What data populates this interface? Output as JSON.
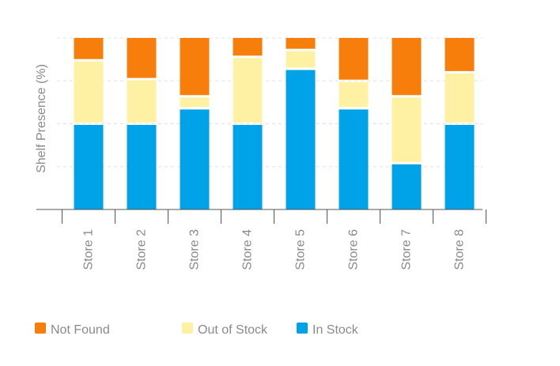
{
  "chart_data": {
    "type": "bar",
    "stacked": true,
    "title": "",
    "xlabel": "",
    "ylabel": "Shelf Presence (%)",
    "ylim": [
      0,
      100
    ],
    "y_tick_labels_visible": false,
    "grid": true,
    "legend_placement": "bottom-left",
    "categories": [
      "Store 1",
      "Store 2",
      "Store 3",
      "Store 4",
      "Store 5",
      "Store 6",
      "Store 7",
      "Store 8"
    ],
    "series": [
      {
        "name": "In Stock",
        "color": "#00a3e8",
        "values": [
          50,
          50,
          59,
          50,
          82,
          59,
          27,
          50
        ]
      },
      {
        "name": "Out of Stock",
        "color": "#fff1a4",
        "values": [
          37,
          26,
          7,
          39,
          11,
          16,
          39,
          30
        ]
      },
      {
        "name": "Not Found",
        "color": "#f77e0a",
        "values": [
          13,
          24,
          34,
          11,
          7,
          25,
          34,
          20
        ]
      }
    ],
    "legend": [
      {
        "name": "Not Found",
        "color": "#f77e0a"
      },
      {
        "name": "Out of Stock",
        "color": "#fff1a4"
      },
      {
        "name": "In Stock",
        "color": "#00a3e8"
      }
    ]
  }
}
